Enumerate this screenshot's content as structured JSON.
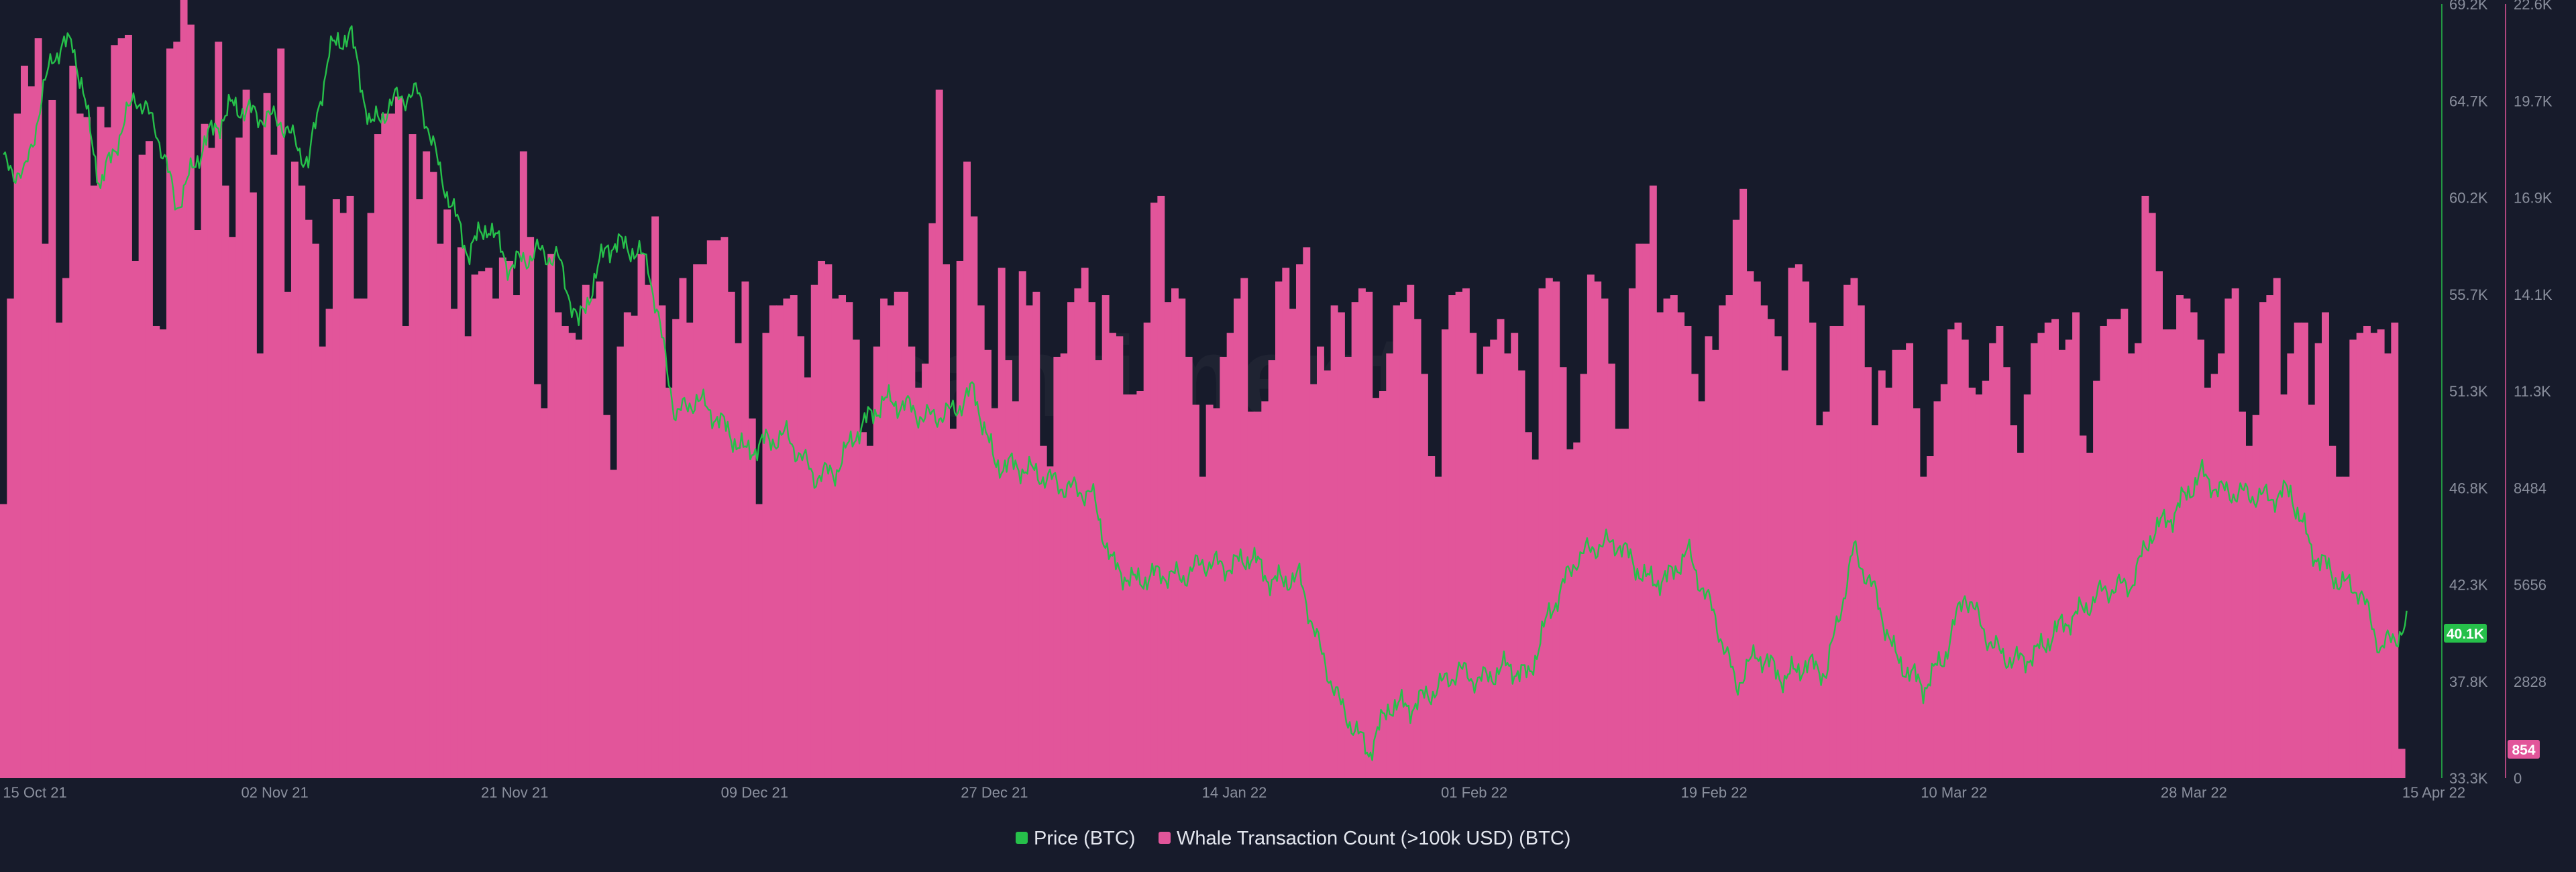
{
  "chart_data": {
    "type": "bar+line",
    "watermark": "santiment",
    "x_tick_labels": [
      "15 Oct 21",
      "02 Nov 21",
      "21 Nov 21",
      "09 Dec 21",
      "27 Dec 21",
      "14 Jan 22",
      "01 Feb 22",
      "19 Feb 22",
      "10 Mar 22",
      "28 Mar 22",
      "15 Apr 22"
    ],
    "price_axis": {
      "ticks": [
        "69.2K",
        "64.7K",
        "60.2K",
        "55.7K",
        "51.3K",
        "46.8K",
        "42.3K",
        "37.8K",
        "33.3K"
      ],
      "range": [
        33300,
        69200
      ]
    },
    "whale_axis": {
      "ticks": [
        "22.6K",
        "19.7K",
        "16.9K",
        "14.1K",
        "11.3K",
        "8484",
        "5656",
        "2828",
        "0"
      ],
      "range": [
        0,
        22600
      ]
    },
    "series": [
      {
        "name": "Price (BTC)",
        "kind": "line",
        "color": "#26c04a",
        "last_value_label": "40.1K",
        "keypoints": [
          [
            0,
            61800
          ],
          [
            3,
            61200
          ],
          [
            7,
            66800
          ],
          [
            10,
            67500
          ],
          [
            14,
            60800
          ],
          [
            19,
            65000
          ],
          [
            22,
            63500
          ],
          [
            25,
            59800
          ],
          [
            29,
            62800
          ],
          [
            33,
            64500
          ],
          [
            37,
            64000
          ],
          [
            40,
            63800
          ],
          [
            44,
            61800
          ],
          [
            47,
            67000
          ],
          [
            50,
            67900
          ],
          [
            53,
            63500
          ],
          [
            57,
            64900
          ],
          [
            60,
            65000
          ],
          [
            63,
            61400
          ],
          [
            67,
            57700
          ],
          [
            70,
            59000
          ],
          [
            73,
            57000
          ],
          [
            77,
            57700
          ],
          [
            80,
            57400
          ],
          [
            83,
            54300
          ],
          [
            87,
            58000
          ],
          [
            90,
            58000
          ],
          [
            93,
            57200
          ],
          [
            97,
            50100
          ],
          [
            100,
            50900
          ],
          [
            103,
            50000
          ],
          [
            107,
            48400
          ],
          [
            110,
            48900
          ],
          [
            113,
            49200
          ],
          [
            117,
            47300
          ],
          [
            120,
            47500
          ],
          [
            123,
            49300
          ],
          [
            127,
            50800
          ],
          [
            130,
            50600
          ],
          [
            133,
            50000
          ],
          [
            137,
            50300
          ],
          [
            140,
            51300
          ],
          [
            143,
            47900
          ],
          [
            147,
            47700
          ],
          [
            150,
            47300
          ],
          [
            153,
            46800
          ],
          [
            157,
            46500
          ],
          [
            160,
            43200
          ],
          [
            163,
            42400
          ],
          [
            167,
            42800
          ],
          [
            170,
            42600
          ],
          [
            173,
            43300
          ],
          [
            177,
            43100
          ],
          [
            180,
            43600
          ],
          [
            183,
            42400
          ],
          [
            187,
            42600
          ],
          [
            190,
            39200
          ],
          [
            193,
            36600
          ],
          [
            197,
            34500
          ],
          [
            200,
            36700
          ],
          [
            203,
            36600
          ],
          [
            207,
            37500
          ],
          [
            210,
            38300
          ],
          [
            213,
            37800
          ],
          [
            217,
            38500
          ],
          [
            220,
            38000
          ],
          [
            223,
            40900
          ],
          [
            227,
            43500
          ],
          [
            230,
            44100
          ],
          [
            233,
            44200
          ],
          [
            237,
            42500
          ],
          [
            240,
            42500
          ],
          [
            243,
            43800
          ],
          [
            247,
            40700
          ],
          [
            250,
            37600
          ],
          [
            253,
            39100
          ],
          [
            257,
            37900
          ],
          [
            260,
            38600
          ],
          [
            263,
            38200
          ],
          [
            267,
            43900
          ],
          [
            270,
            41900
          ],
          [
            273,
            38900
          ],
          [
            277,
            37500
          ],
          [
            280,
            38900
          ],
          [
            283,
            41900
          ],
          [
            287,
            39400
          ],
          [
            290,
            38700
          ],
          [
            293,
            39000
          ],
          [
            297,
            40400
          ],
          [
            300,
            41100
          ],
          [
            303,
            42000
          ],
          [
            307,
            42300
          ],
          [
            310,
            44700
          ],
          [
            313,
            45500
          ],
          [
            317,
            47400
          ],
          [
            320,
            46600
          ],
          [
            323,
            46500
          ],
          [
            327,
            46300
          ],
          [
            330,
            46600
          ],
          [
            333,
            43900
          ],
          [
            337,
            42400
          ],
          [
            340,
            42000
          ],
          [
            343,
            39300
          ],
          [
            347,
            40400
          ],
          [
            350,
            40100
          ]
        ]
      },
      {
        "name": "Whale Transaction Count (>100k USD) (BTC)",
        "kind": "bar",
        "color": "#e2559a",
        "last_value_label": "854",
        "daily_values": [
          8000,
          14000,
          19400,
          20800,
          20200,
          21600,
          15600,
          19800,
          13300,
          14600,
          20800,
          19400,
          19300,
          17300,
          19600,
          19000,
          21400,
          21600,
          21700,
          15100,
          18200,
          18600,
          13200,
          13100,
          21300,
          21500,
          22800,
          22000,
          16000,
          19100,
          18400,
          21500,
          17300,
          15800,
          18700,
          20100,
          17100,
          12400,
          20000,
          18200,
          21300,
          14200,
          18000,
          17300,
          16300,
          15600,
          12600,
          13700,
          16900,
          16500,
          17000,
          14000,
          14000,
          16500,
          18800,
          19400,
          19400,
          19900,
          13200,
          18800,
          16900,
          18300,
          17700,
          15600,
          16600,
          13700,
          15500,
          12900,
          14700,
          14800,
          14900,
          14000,
          15200,
          15100,
          14100,
          18300,
          15800,
          11500,
          10800,
          15300,
          13600,
          13200,
          13000,
          12800,
          14400,
          14000,
          14500,
          10600,
          9000,
          12600,
          13600,
          13500,
          15300,
          14400,
          16400,
          13800,
          11400,
          13400,
          14600,
          13300,
          15000,
          15000,
          15700,
          15700,
          15800,
          14200,
          12700,
          14500,
          10500,
          8000,
          13000,
          13800,
          13800,
          14000,
          14100,
          12900,
          11700,
          14400,
          15100,
          15000,
          14000,
          14100,
          13900,
          12800,
          10100,
          9700,
          12600,
          14000,
          13800,
          14200,
          14200,
          12600,
          11400,
          12100,
          16200,
          20100,
          15000,
          10200,
          15100,
          18000,
          16400,
          13800,
          12500,
          10800,
          14900,
          12200,
          11000,
          14800,
          13800,
          14200,
          9700,
          9100,
          12300,
          12400,
          13900,
          14300,
          14900,
          13900,
          12200,
          14100,
          13000,
          12900,
          11200,
          11200,
          11300,
          13300,
          16800,
          17000,
          13900,
          14300,
          14000,
          12300,
          10900,
          8800,
          10900,
          10800,
          12300,
          13000,
          14000,
          14600,
          10700,
          10700,
          11000,
          12200,
          14500,
          14900,
          13700,
          15000,
          15500,
          11500,
          12600,
          11900,
          13800,
          13600,
          12300,
          13900,
          14300,
          14200,
          11100,
          11300,
          12400,
          13800,
          13900,
          14400,
          13400,
          11800,
          9400,
          8800,
          13100,
          14100,
          14200,
          14300,
          13000,
          11800,
          12600,
          12800,
          13400,
          12400,
          13000,
          11900,
          10100,
          9300,
          14300,
          14600,
          14500,
          12000,
          9600,
          9800,
          11800,
          14700,
          14500,
          14000,
          12100,
          10200,
          10200,
          14300,
          15600,
          15600,
          17300,
          13600,
          14000,
          14100,
          13600,
          13200,
          11800,
          11000,
          12900,
          12500,
          13800,
          14100,
          16300,
          17200,
          14800,
          14500,
          13800,
          13400,
          12900,
          11900,
          14900,
          15000,
          14500,
          13300,
          10300,
          10700,
          13200,
          13200,
          14400,
          14600,
          13800,
          12000,
          10300,
          11900,
          11400,
          12500,
          12500,
          12700,
          10800,
          8800,
          9400,
          11000,
          11500,
          13100,
          13300,
          12800,
          11400,
          11200,
          11600,
          12700,
          13200,
          12000,
          10300,
          9500,
          11200,
          12700,
          13000,
          13300,
          13400,
          12500,
          12800,
          13600,
          10000,
          9500,
          11600,
          13200,
          13400,
          13400,
          13700,
          12400,
          12700,
          17000,
          16500,
          14800,
          13100,
          13100,
          14100,
          14000,
          13600,
          12800,
          11400,
          11800,
          12400,
          14000,
          14300,
          10700,
          9700,
          10600,
          13900,
          14100,
          14600,
          11200,
          12400,
          13300,
          13300,
          10900,
          12700,
          13600,
          9700,
          8800,
          8800,
          12800,
          13000,
          13200,
          13000,
          13100,
          12400,
          13300,
          854
        ]
      }
    ]
  }
}
